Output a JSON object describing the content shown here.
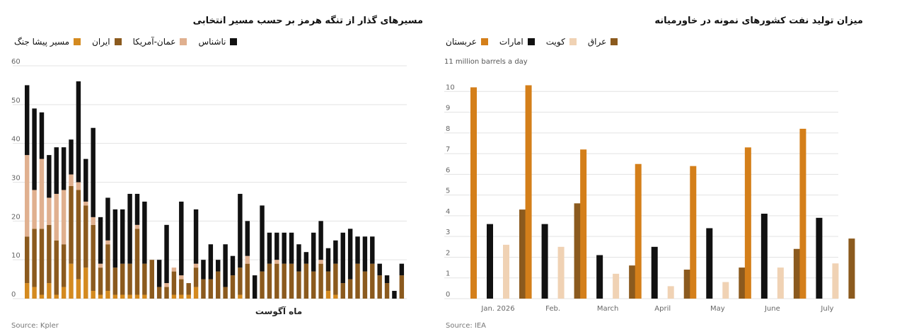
{
  "left": {
    "title": "مسیرهای گذار از تنگه هرمز بر حسب مسیر انتخابی",
    "source": "Source: Kpler",
    "chart_data": {
      "type": "bar",
      "stacked": true,
      "xlabel": "ماه آگوست",
      "ylim": [
        0,
        60
      ],
      "yticks": [
        0,
        10,
        20,
        30,
        40,
        50,
        60
      ],
      "grid": true,
      "legend_position": "top",
      "series": [
        {
          "name": "مسیر پیشا جنگ",
          "color": "#d48a1f",
          "values": [
            4,
            3,
            1,
            4,
            1,
            3,
            9,
            5,
            8,
            2,
            1,
            2,
            1,
            1,
            1,
            1,
            1,
            0,
            0,
            0,
            1,
            1,
            1,
            3,
            0,
            0,
            0,
            0,
            0,
            1,
            0,
            0,
            0,
            0,
            0,
            0,
            0,
            0,
            0,
            0,
            0,
            2,
            1,
            0,
            0,
            0,
            0,
            0,
            0,
            0,
            0,
            0
          ]
        },
        {
          "name": "ایران",
          "color": "#8b5a1e",
          "values": [
            12,
            15,
            17,
            15,
            14,
            11,
            20,
            23,
            16,
            17,
            7,
            12,
            7,
            8,
            8,
            17,
            8,
            10,
            3,
            3,
            6,
            4,
            3,
            5,
            5,
            5,
            7,
            3,
            6,
            7,
            9,
            0,
            7,
            9,
            9,
            9,
            9,
            7,
            9,
            7,
            9,
            5,
            8,
            4,
            5,
            9,
            7,
            9,
            6,
            4,
            0,
            6
          ]
        },
        {
          "name": "عمان-آمریکا",
          "color": "#e0b08f",
          "values": [
            21,
            10,
            18,
            7,
            12,
            14,
            3,
            2,
            1,
            2,
            1,
            1,
            0,
            0,
            0,
            1,
            0,
            0,
            0,
            1,
            1,
            1,
            0,
            1,
            0,
            0,
            0,
            0,
            0,
            0,
            2,
            0,
            0,
            0,
            1,
            0,
            0,
            0,
            0,
            0,
            1,
            0,
            0,
            0,
            0,
            0,
            0,
            0,
            0,
            0,
            0,
            0
          ]
        },
        {
          "name": "ناشناس",
          "color": "#111111",
          "values": [
            18,
            21,
            12,
            11,
            12,
            11,
            9,
            26,
            11,
            23,
            12,
            11,
            15,
            14,
            18,
            8,
            16,
            0,
            7,
            15,
            0,
            19,
            0,
            14,
            5,
            9,
            3,
            11,
            5,
            19,
            9,
            6,
            17,
            8,
            7,
            8,
            8,
            7,
            3,
            10,
            10,
            6,
            6,
            13,
            13,
            7,
            9,
            7,
            3,
            2,
            2,
            3
          ]
        }
      ]
    },
    "legend": [
      {
        "label": "مسیر پیشا جنگ",
        "color": "#d48a1f"
      },
      {
        "label": "ایران",
        "color": "#8b5a1e"
      },
      {
        "label": "عمان-آمریکا",
        "color": "#e0b08f"
      },
      {
        "label": "ناشناس",
        "color": "#111111"
      }
    ]
  },
  "right": {
    "title": "میزان تولید نفت کشورهای نمونه در خاورمیانه",
    "source": "Source: IEA",
    "unit_label": "11 million barrels a day",
    "chart_data": {
      "type": "bar",
      "categories": [
        "Jan. 2026",
        "Feb.",
        "March",
        "April",
        "May",
        "June",
        "July"
      ],
      "ylim": [
        0,
        11
      ],
      "yticks": [
        0,
        1,
        2,
        3,
        4,
        5,
        6,
        7,
        8,
        9,
        10
      ],
      "grid": true,
      "legend_position": "top",
      "series": [
        {
          "name": "عربستان",
          "color": "#d47f1a",
          "values": [
            10.2,
            10.3,
            7.2,
            6.5,
            6.4,
            7.3,
            8.2
          ]
        },
        {
          "name": "امارات",
          "color": "#111111",
          "values": [
            3.6,
            3.6,
            2.1,
            2.5,
            3.4,
            4.1,
            3.9
          ]
        },
        {
          "name": "کویت",
          "color": "#f0d2b4",
          "values": [
            2.6,
            2.5,
            1.2,
            0.6,
            0.8,
            1.5,
            1.7
          ]
        },
        {
          "name": "عراق",
          "color": "#8b5a1e",
          "values": [
            4.3,
            4.6,
            1.6,
            1.4,
            1.5,
            2.4,
            2.9
          ]
        }
      ]
    },
    "legend": [
      {
        "label": "عربستان",
        "color": "#d47f1a"
      },
      {
        "label": "امارات",
        "color": "#111111"
      },
      {
        "label": "کویت",
        "color": "#f0d2b4"
      },
      {
        "label": "عراق",
        "color": "#8b5a1e"
      }
    ]
  }
}
